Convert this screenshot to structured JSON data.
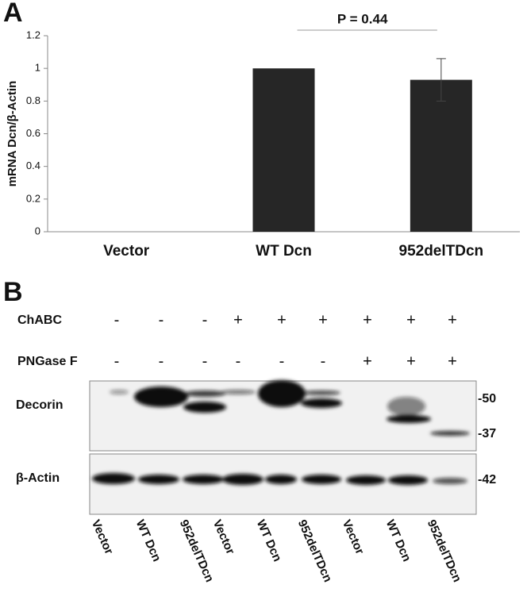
{
  "chart_data": {
    "type": "bar",
    "panel": "A",
    "ylabel": "mRNA Dcn/β-Actin",
    "categories": [
      "Vector",
      "WT Dcn",
      "952delTDcn"
    ],
    "series": [
      {
        "color": "#262626",
        "values": [
          0,
          1,
          0.93
        ],
        "errors": [
          null,
          null,
          0.13
        ]
      }
    ],
    "ylim": [
      0,
      1.2
    ],
    "yticks": [
      0,
      0.2,
      0.4,
      0.6,
      0.8,
      1,
      1.2
    ],
    "annotation": "P = 0.44"
  },
  "blot": {
    "panel": "B",
    "rows": [
      {
        "label": "ChABC",
        "signs": [
          "-",
          "-",
          "-",
          "+",
          "+",
          "+",
          "+",
          "+",
          "+"
        ]
      },
      {
        "label": "PNGase F",
        "signs": [
          "-",
          "-",
          "-",
          "-",
          "-",
          "-",
          "+",
          "+",
          "+"
        ]
      }
    ],
    "bands": [
      "Decorin",
      "β-Actin"
    ],
    "markers": [
      "-50",
      "-37",
      "-42"
    ],
    "lanes": [
      "Vector",
      "WT Dcn",
      "952delTDcn",
      "Vector",
      "WT Dcn",
      "952delTDcn",
      "Vector",
      "WT Dcn",
      "952delTDcn"
    ]
  }
}
